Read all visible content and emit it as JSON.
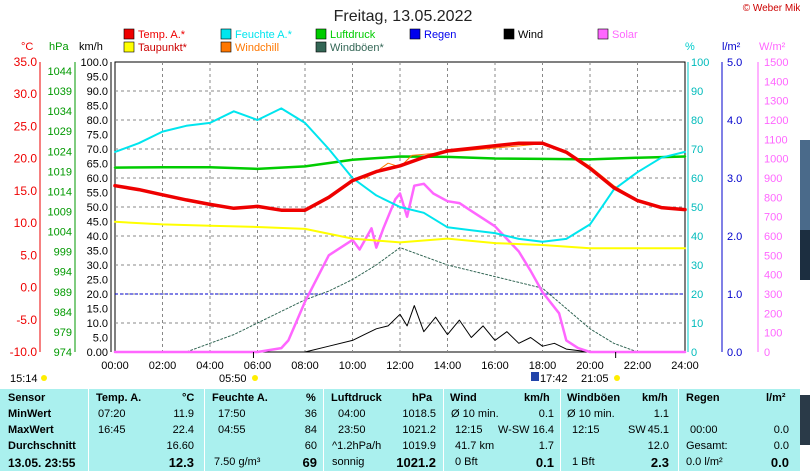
{
  "title": "Freitag, 13.05.2022",
  "copyright": "© Weber Mike",
  "axis_units": {
    "celsius": "°C",
    "hpa": "hPa",
    "kmh": "km/h",
    "percent": "%",
    "lm2": "l/m²",
    "wm2": "W/m²"
  },
  "legend": [
    {
      "label": "Temp. A.*",
      "color": "#ee0000"
    },
    {
      "label": "Feuchte A.*",
      "color": "#00e5ee"
    },
    {
      "label": "Luftdruck",
      "color": "#00cc00"
    },
    {
      "label": "Regen",
      "color": "#0000ee"
    },
    {
      "label": "Wind",
      "color": "#000000"
    },
    {
      "label": "Solar",
      "color": "#ff66ff"
    },
    {
      "label": "Taupunkt*",
      "color": "#ffff00"
    },
    {
      "label": "Windchill",
      "color": "#ff7700"
    },
    {
      "label": "Windböen*",
      "color": "#336655"
    }
  ],
  "markers": {
    "bottom_left": "15:14",
    "sunrise": "05:50",
    "noon_marker": "17:42",
    "sunset": "21:05"
  },
  "chart_data": {
    "type": "line",
    "title": "Freitag, 13.05.2022",
    "x_unit": "hours",
    "x_ticks": [
      "00:00",
      "02:00",
      "04:00",
      "06:00",
      "08:00",
      "10:00",
      "12:00",
      "14:00",
      "16:00",
      "18:00",
      "20:00",
      "22:00",
      "24:00"
    ],
    "axes": {
      "temp_c": {
        "range": [
          -10,
          35
        ],
        "ticks": [
          "35.0",
          "30.0",
          "25.0",
          "20.0",
          "15.0",
          "10.0",
          "5.0",
          "0.0",
          "-5.0",
          "-10.0"
        ],
        "color": "#ee0000"
      },
      "pressure_hpa": {
        "range": [
          974,
          1044
        ],
        "ticks": [
          "1044",
          "1039",
          "1034",
          "1029",
          "1024",
          "1019",
          "1014",
          "1009",
          "1004",
          "999",
          "994",
          "989",
          "984",
          "979",
          "974"
        ],
        "color": "#00aa00"
      },
      "wind_kmh": {
        "range": [
          0,
          100
        ],
        "ticks": [
          "100.0",
          "95.0",
          "90.0",
          "85.0",
          "80.0",
          "75.0",
          "70.0",
          "65.0",
          "60.0",
          "55.0",
          "50.0",
          "45.0",
          "40.0",
          "35.0",
          "30.0",
          "25.0",
          "20.0",
          "15.0",
          "10.0",
          "5.0",
          "0.00"
        ],
        "color": "#000000"
      },
      "humidity_pct": {
        "range": [
          0,
          100
        ],
        "ticks": [
          "100",
          "90",
          "80",
          "70",
          "60",
          "50",
          "40",
          "30",
          "20",
          "10",
          "0"
        ],
        "color": "#00cccc"
      },
      "rain_lm2": {
        "range": [
          0,
          5
        ],
        "ticks": [
          "5.0",
          "4.0",
          "3.0",
          "2.0",
          "1.0",
          "0.0"
        ],
        "color": "#0000cc"
      },
      "solar_wm2": {
        "range": [
          0,
          1500
        ],
        "ticks": [
          "1500",
          "1400",
          "1300",
          "1200",
          "1100",
          "1000",
          "900",
          "800",
          "700",
          "600",
          "500",
          "400",
          "300",
          "200",
          "100",
          "0"
        ],
        "color": "#ff66ff"
      }
    },
    "series": [
      {
        "name": "Temp. A.*",
        "axis": "temp_c",
        "color": "#ee0000",
        "width": 3.5,
        "x": [
          0,
          1,
          2,
          3,
          4,
          5,
          6,
          7,
          8,
          9,
          10,
          11,
          12,
          13,
          14,
          15,
          16,
          17,
          18,
          19,
          20,
          21,
          22,
          23,
          24
        ],
        "y": [
          15.8,
          15.2,
          14.4,
          13.6,
          12.9,
          12.3,
          12.6,
          12.0,
          12.0,
          14.0,
          16.6,
          18.0,
          18.9,
          20.2,
          21.2,
          21.6,
          22.0,
          22.4,
          22.4,
          21.0,
          18.5,
          15.5,
          13.5,
          12.4,
          12.1
        ]
      },
      {
        "name": "Feuchte A.*",
        "axis": "humidity_pct",
        "color": "#00e5ee",
        "width": 2,
        "x": [
          0,
          1,
          2,
          3,
          4,
          5,
          6,
          7,
          8,
          9,
          10,
          11,
          12,
          13,
          14,
          15,
          16,
          17,
          18,
          19,
          20,
          21,
          22,
          23,
          24
        ],
        "y": [
          69,
          72,
          76,
          78,
          79,
          83,
          80,
          84,
          79,
          70,
          60,
          54,
          50,
          48,
          43,
          42,
          41,
          39,
          38,
          39,
          44,
          56,
          62,
          67,
          69
        ]
      },
      {
        "name": "Luftdruck",
        "axis": "pressure_hpa",
        "color": "#00cc00",
        "width": 2.5,
        "x": [
          0,
          2,
          4,
          6,
          8,
          10,
          12,
          14,
          16,
          18,
          20,
          22,
          24
        ],
        "y": [
          1018.5,
          1018.6,
          1018.6,
          1018.2,
          1018.8,
          1020.4,
          1021.2,
          1021.1,
          1020.7,
          1020.6,
          1020.5,
          1020.9,
          1021.2
        ]
      },
      {
        "name": "Taupunkt*",
        "axis": "temp_c",
        "color": "#ffff00",
        "width": 2,
        "x": [
          0,
          2,
          4,
          6,
          8,
          10,
          12,
          14,
          16,
          18,
          20,
          22,
          24
        ],
        "y": [
          10.2,
          9.8,
          9.6,
          9.4,
          9.1,
          7.6,
          7.0,
          7.6,
          6.9,
          6.6,
          6.1,
          6.1,
          6.1
        ]
      },
      {
        "name": "Windchill",
        "axis": "temp_c",
        "color": "#ff7700",
        "width": 1,
        "x": [
          10.5,
          11,
          11.5,
          12,
          12.5,
          18,
          19,
          20,
          21,
          22
        ],
        "y": [
          16.9,
          18,
          19.3,
          18.7,
          20.5,
          22.3,
          21.2,
          18.8,
          15.8,
          13.6
        ]
      },
      {
        "name": "Solar",
        "axis": "solar_wm2",
        "color": "#ff66ff",
        "width": 2.5,
        "x": [
          0,
          5.5,
          6,
          7,
          7.3,
          8,
          9,
          10,
          10.3,
          10.8,
          11,
          11.3,
          11.8,
          12,
          12.3,
          12.6,
          13,
          13.4,
          14,
          14.5,
          15,
          16,
          17,
          17.5,
          18,
          18.7,
          19,
          19.5,
          20,
          24
        ],
        "y": [
          0,
          0,
          0,
          20,
          60,
          260,
          500,
          580,
          530,
          640,
          540,
          640,
          790,
          820,
          700,
          860,
          870,
          820,
          780,
          770,
          730,
          650,
          520,
          420,
          310,
          200,
          60,
          20,
          0,
          0
        ]
      },
      {
        "name": "Wind",
        "axis": "wind_kmh",
        "color": "#000000",
        "width": 1,
        "x": [
          0,
          6,
          8,
          9,
          10,
          10.5,
          11,
          11.5,
          12,
          12.3,
          12.6,
          13,
          13.5,
          14,
          14.5,
          15,
          15.5,
          16,
          16.5,
          17,
          17.5,
          18,
          18.5,
          19,
          20,
          24
        ],
        "y": [
          0,
          0,
          0,
          2,
          4,
          6,
          8,
          9,
          13,
          9,
          16,
          7,
          12,
          6,
          11,
          5,
          9,
          4,
          7,
          3,
          5,
          2,
          3,
          1,
          0,
          0
        ]
      },
      {
        "name": "Windböen*",
        "axis": "wind_kmh",
        "color": "#336655",
        "width": 1,
        "x": [
          0,
          3,
          4,
          5,
          6,
          7,
          8,
          9,
          10,
          11,
          12,
          13,
          14,
          15,
          16,
          17,
          18,
          19,
          20,
          21,
          22,
          24
        ],
        "y": [
          0,
          0,
          3,
          6,
          10,
          14,
          18,
          21,
          25,
          30,
          36,
          33,
          30,
          28,
          26,
          24,
          22,
          15,
          8,
          3,
          0,
          0
        ]
      }
    ]
  },
  "table": {
    "headers": {
      "sensor": "Sensor",
      "temp": "Temp. A.",
      "temp_unit": "°C",
      "feuchte": "Feuchte A.",
      "feuchte_unit": "%",
      "luftdruck": "Luftdruck",
      "luftdruck_unit": "hPa",
      "wind": "Wind",
      "wind_unit": "km/h",
      "windboeen": "Windböen",
      "windboeen_unit": "km/h",
      "regen": "Regen",
      "regen_unit": "l/m²"
    },
    "labels": {
      "min": "MinWert",
      "max": "MaxWert",
      "avg": "Durchschnitt",
      "now": "13.05. 23:55"
    },
    "temp": {
      "min_time": "07:20",
      "min": "11.9",
      "max_time": "16:45",
      "max": "22.4",
      "avg": "16.60",
      "now": "12.3"
    },
    "feuchte": {
      "min_time": "17:50",
      "min": "36",
      "max_time": "04:55",
      "max": "84",
      "avg": "60",
      "now_extra": "7.50 g/m³",
      "now": "69"
    },
    "luftdruck": {
      "min_time": "04:00",
      "min": "1018.5",
      "max_time": "23:50",
      "max": "1021.2",
      "trend_label": "^1.2hPa/h",
      "avg": "1019.9",
      "now_text": "sonnig",
      "now": "1021.2"
    },
    "wind": {
      "min_label": "Ø 10 min.",
      "min": "0.1",
      "max_time": "12:15",
      "max_dir": "W-SW",
      "max": "16.4",
      "avg_dist": "41.7 km",
      "avg": "1.7",
      "now_bft": "0 Bft",
      "now": "0.1"
    },
    "windboeen": {
      "min_label": "Ø 10 min.",
      "min": "1.1",
      "max_time": "12:15",
      "max_dir": "SW",
      "max": "45.1",
      "avg": "12.0",
      "now_bft": "1 Bft",
      "now": "2.3"
    },
    "regen": {
      "max_time": "00:00",
      "max": "0.0",
      "avg_label": "Gesamt:",
      "avg": "0.0",
      "now_text": "0.0 l/m²",
      "now": "0.0"
    }
  }
}
